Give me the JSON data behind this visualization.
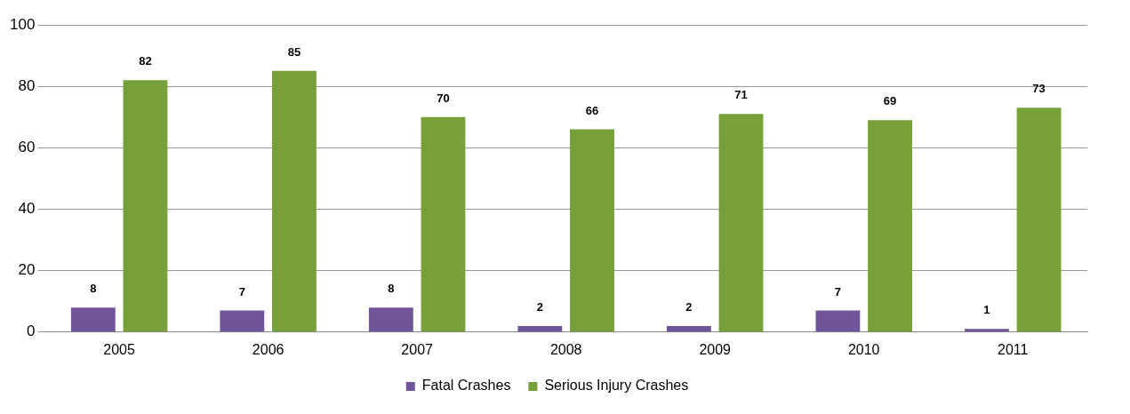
{
  "chart_data": {
    "type": "bar",
    "categories": [
      "2005",
      "2006",
      "2007",
      "2008",
      "2009",
      "2010",
      "2011"
    ],
    "series": [
      {
        "name": "Fatal Crashes",
        "color": "#70559a",
        "values": [
          8,
          7,
          8,
          2,
          2,
          7,
          1
        ]
      },
      {
        "name": "Serious Injury Crashes",
        "color": "#77a03a",
        "values": [
          82,
          85,
          70,
          66,
          71,
          69,
          73
        ]
      }
    ],
    "ylim": [
      0,
      100
    ],
    "yticks": [
      0,
      20,
      40,
      60,
      80,
      100
    ],
    "grid": "y",
    "legend": "bottom",
    "data_labels": true
  }
}
